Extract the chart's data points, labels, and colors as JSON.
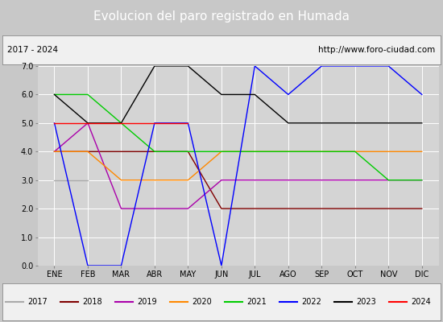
{
  "title": "Evolucion del paro registrado en Humada",
  "subtitle_left": "2017 - 2024",
  "subtitle_right": "http://www.foro-ciudad.com",
  "ylim": [
    0.0,
    7.0
  ],
  "yticks": [
    0.0,
    1.0,
    2.0,
    3.0,
    4.0,
    5.0,
    6.0,
    7.0
  ],
  "months": [
    "ENE",
    "FEB",
    "MAR",
    "ABR",
    "MAY",
    "JUN",
    "JUL",
    "AGO",
    "SEP",
    "OCT",
    "NOV",
    "DIC"
  ],
  "series": {
    "2017": {
      "color": "#aaaaaa",
      "values": [
        3,
        3,
        null,
        null,
        null,
        null,
        null,
        null,
        null,
        null,
        null,
        null
      ]
    },
    "2018": {
      "color": "#800000",
      "values": [
        4,
        4,
        4,
        4,
        4,
        2,
        2,
        2,
        2,
        2,
        2,
        2
      ]
    },
    "2019": {
      "color": "#aa00aa",
      "values": [
        4,
        5,
        2,
        2,
        2,
        3,
        3,
        3,
        3,
        3,
        3,
        3
      ]
    },
    "2020": {
      "color": "#ff8800",
      "values": [
        4,
        4,
        3,
        3,
        3,
        4,
        4,
        4,
        4,
        4,
        4,
        4
      ]
    },
    "2021": {
      "color": "#00cc00",
      "values": [
        6,
        6,
        5,
        4,
        4,
        4,
        4,
        4,
        4,
        4,
        3,
        3
      ]
    },
    "2022": {
      "color": "#0000ff",
      "values": [
        5,
        0,
        0,
        5,
        5,
        0,
        7,
        6,
        7,
        7,
        7,
        6
      ]
    },
    "2023": {
      "color": "#000000",
      "values": [
        6,
        5,
        5,
        7,
        7,
        6,
        6,
        5,
        5,
        5,
        5,
        5
      ]
    },
    "2024": {
      "color": "#ff0000",
      "values": [
        5,
        5,
        5,
        5,
        5,
        null,
        null,
        null,
        null,
        null,
        null,
        null
      ]
    }
  },
  "bg_color": "#c8c8c8",
  "plot_bg_color": "#d4d4d4",
  "title_bg_color": "#4a86c8",
  "title_text_color": "#ffffff",
  "header_bg_color": "#f0f0f0",
  "legend_bg_color": "#f0f0f0",
  "title_fontsize": 11,
  "header_fontsize": 7.5,
  "tick_fontsize": 7,
  "legend_fontsize": 7
}
